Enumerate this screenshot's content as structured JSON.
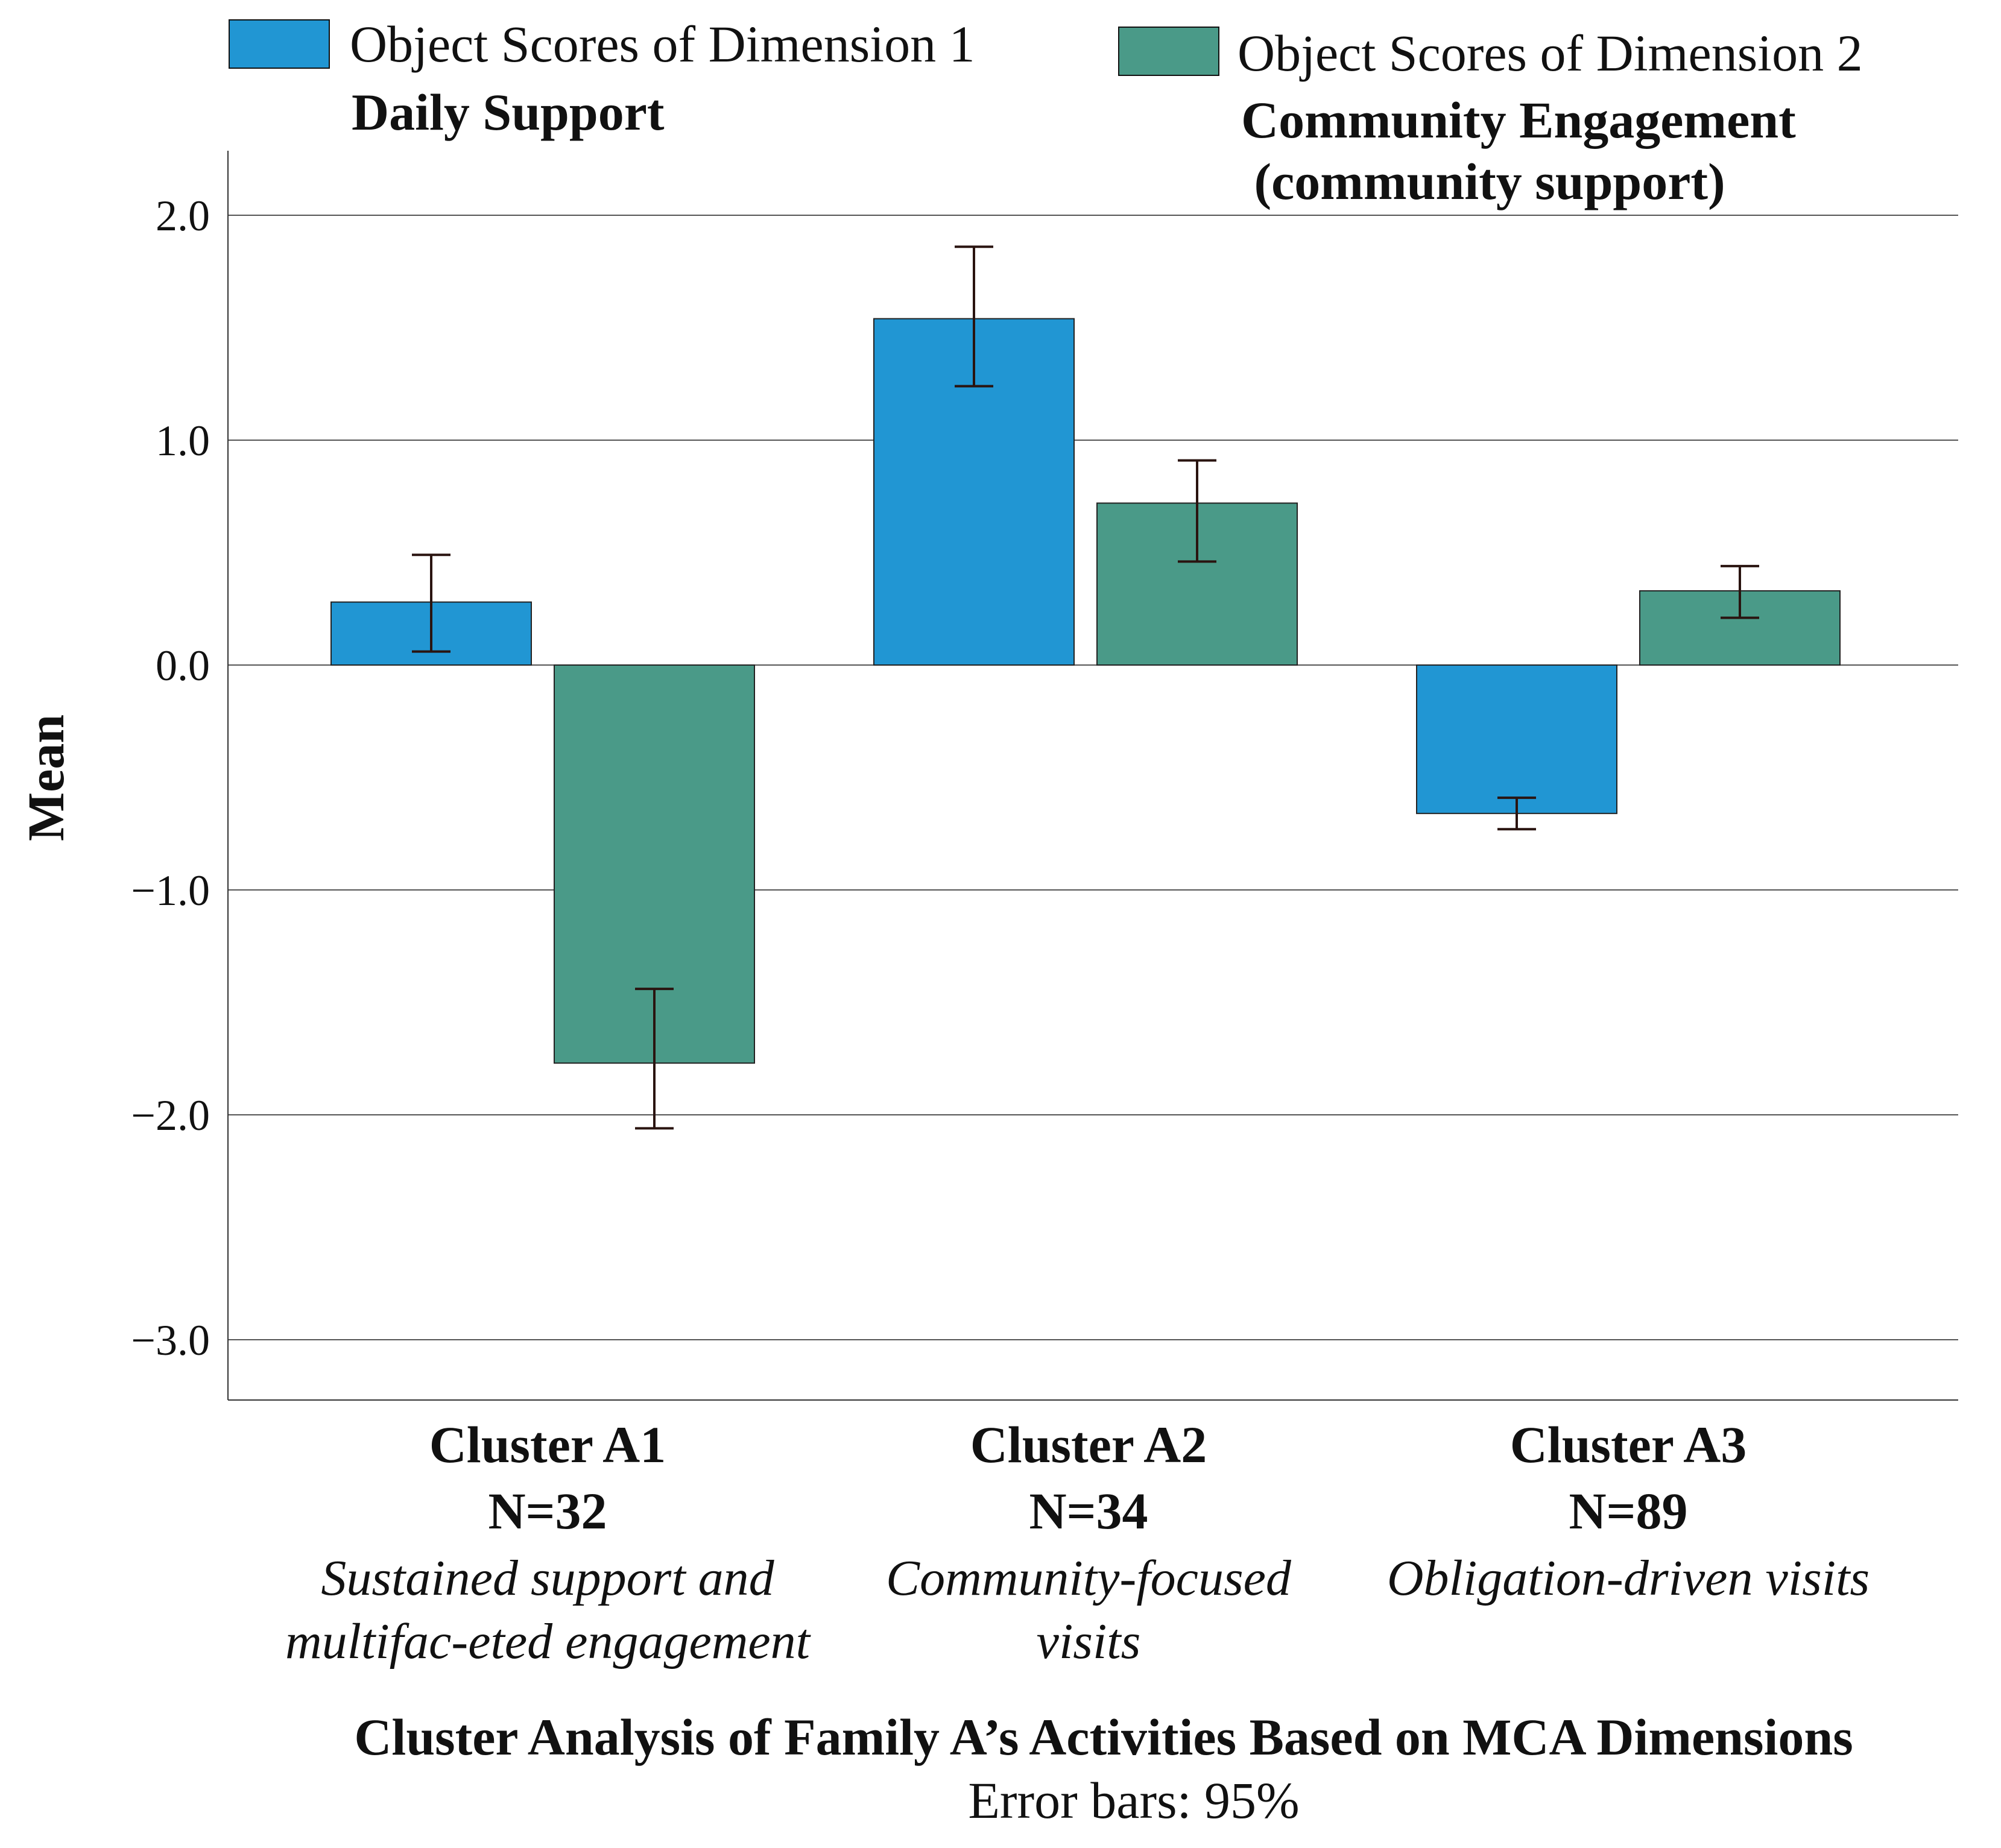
{
  "chart_data": {
    "type": "bar",
    "title": "Cluster Analysis of Family A’s Activities Based on MCA Dimensions",
    "subtitle": "Error bars: 95%",
    "ylabel": "Mean",
    "xlabel": "",
    "ylim": [
      -3.4,
      2.3
    ],
    "yticks": [
      2.0,
      1.0,
      0.0,
      -1.0,
      -2.0,
      -3.0
    ],
    "ytick_labels": [
      "2.0",
      "1.0",
      "0.0",
      "−1.0",
      "−2.0",
      "−3.0"
    ],
    "grid": true,
    "categories": [
      {
        "name": "Cluster A1",
        "n": "N=32",
        "desc": [
          "Sustained support and",
          "multifac-eted engagement"
        ]
      },
      {
        "name": "Cluster A2",
        "n": "N=34",
        "desc": [
          "Community-focused",
          "visits"
        ]
      },
      {
        "name": "Cluster A3",
        "n": "N=89",
        "desc": [
          "Obligation-driven visits"
        ]
      }
    ],
    "series": [
      {
        "name": "Object Scores of Dimension 1",
        "subtitle": [
          "Daily Support"
        ],
        "color": "#2196d3",
        "values": [
          0.28,
          1.54,
          -0.66
        ],
        "err_low": [
          0.06,
          1.24,
          -0.73
        ],
        "err_high": [
          0.49,
          1.86,
          -0.59
        ]
      },
      {
        "name": "Object Scores of Dimension 2",
        "subtitle": [
          "Community Engagement",
          " (community support)"
        ],
        "color": "#4a9a88",
        "values": [
          -1.77,
          0.72,
          0.33
        ],
        "err_low": [
          -2.06,
          0.46,
          0.21
        ],
        "err_high": [
          -1.44,
          0.91,
          0.44
        ]
      }
    ],
    "legend_position": "top"
  }
}
